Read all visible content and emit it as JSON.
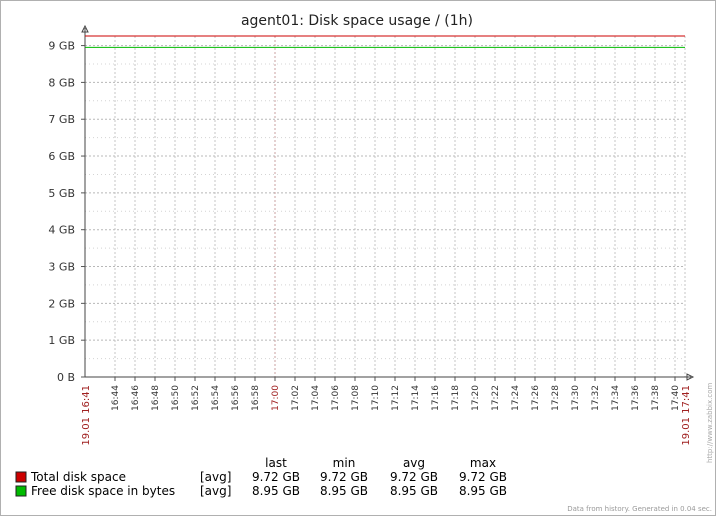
{
  "chart_data": {
    "type": "line",
    "title": "agent01: Disk space usage / (1h)",
    "xlabel": "",
    "ylabel": "",
    "ylim": [
      0,
      9.26
    ],
    "y_ticks": [
      "0 B",
      "1 GB",
      "2 GB",
      "3 GB",
      "4 GB",
      "5 GB",
      "6 GB",
      "7 GB",
      "8 GB",
      "9 GB"
    ],
    "x_tick_labels": [
      "16:44",
      "16:46",
      "16:48",
      "16:50",
      "16:52",
      "16:54",
      "16:56",
      "16:58",
      "17:00",
      "17:02",
      "17:04",
      "17:06",
      "17:08",
      "17:10",
      "17:12",
      "17:14",
      "17:16",
      "17:18",
      "17:20",
      "17:22",
      "17:24",
      "17:26",
      "17:28",
      "17:30",
      "17:32",
      "17:34",
      "17:36",
      "17:38",
      "17:40"
    ],
    "x_tick_highlight": [
      "17:00"
    ],
    "x_start_label": "19.01 16:41",
    "x_end_label": "19.01 17:41",
    "grid": true,
    "series": [
      {
        "name": "Total disk space",
        "color": "#cc0000",
        "values": [
          9.72,
          9.72
        ]
      },
      {
        "name": "Free disk space in bytes",
        "color": "#00bb00",
        "values": [
          8.95,
          8.95
        ]
      }
    ],
    "legend": {
      "columns": [
        "last",
        "min",
        "avg",
        "max"
      ],
      "rows": [
        {
          "name": "Total disk space",
          "func": "[avg]",
          "last": "9.72 GB",
          "min": "9.72 GB",
          "avg": "9.72 GB",
          "max": "9.72 GB",
          "swatch": "#cc0000"
        },
        {
          "name": "Free disk space in bytes",
          "func": "[avg]",
          "last": "8.95 GB",
          "min": "8.95 GB",
          "avg": "8.95 GB",
          "max": "8.95 GB",
          "swatch": "#00bb00"
        }
      ]
    },
    "side_note": "http://www.zabbix.com",
    "footer": "Data from history. Generated in 0.04 sec."
  }
}
